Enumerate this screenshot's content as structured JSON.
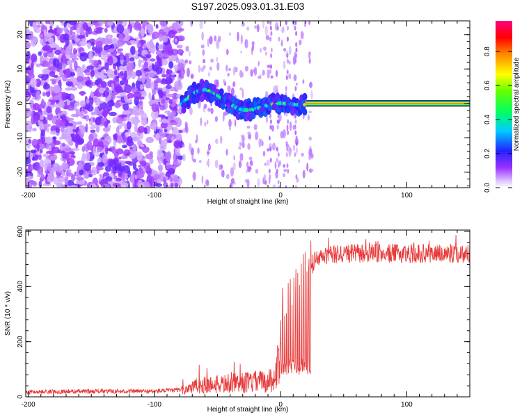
{
  "figure": {
    "title": "S197.2025.093.01.31.E03"
  },
  "chart_data": [
    {
      "type": "heatmap",
      "title": "S197.2025.093.01.31.E03",
      "xlabel": "Height of straight line (km)",
      "ylabel": "Frequency (Hz)",
      "xlim": [
        -202,
        150
      ],
      "ylim": [
        -24.5,
        24
      ],
      "xticks": [
        -200,
        -100,
        0,
        100
      ],
      "yticks": [
        -20,
        -10,
        0,
        10,
        20
      ],
      "colorbar": {
        "label": "Normalized spectral amplitude",
        "range": [
          0,
          0.98
        ],
        "ticks": [
          0.0,
          0.2,
          0.4,
          0.6,
          0.8
        ]
      },
      "features": {
        "noise_region_x": [
          -202,
          -78
        ],
        "onset_x": -78,
        "carrier_start_x": 20,
        "carrier_frequency_hz": 0,
        "carrier_amplitude": 0.9,
        "wandering_signal_x": [
          -78,
          20
        ],
        "wandering_signal_freq_range_hz": [
          -4,
          5
        ]
      }
    },
    {
      "type": "line",
      "xlabel": "Height of straight line (km)",
      "ylabel": "SNR (10 * v/v)",
      "xlim": [
        -202,
        150
      ],
      "ylim": [
        0,
        605
      ],
      "xticks": [
        -200,
        -100,
        0,
        100
      ],
      "yticks": [
        0,
        200,
        400,
        600
      ],
      "series": [
        {
          "name": "SNR",
          "color": "#e83a3a",
          "points": [
            [
              -202,
              18
            ],
            [
              -150,
              20
            ],
            [
              -100,
              20
            ],
            [
              -80,
              25
            ],
            [
              -72,
              60
            ],
            [
              -60,
              70
            ],
            [
              -50,
              75
            ],
            [
              -40,
              80
            ],
            [
              -30,
              85
            ],
            [
              -20,
              90
            ],
            [
              -10,
              95
            ],
            [
              -5,
              110
            ],
            [
              0,
              250
            ],
            [
              5,
              300
            ],
            [
              10,
              340
            ],
            [
              15,
              360
            ],
            [
              20,
              400
            ],
            [
              23,
              440
            ],
            [
              26,
              490
            ],
            [
              35,
              510
            ],
            [
              50,
              520
            ],
            [
              100,
              520
            ],
            [
              150,
              520
            ]
          ]
        }
      ]
    }
  ]
}
